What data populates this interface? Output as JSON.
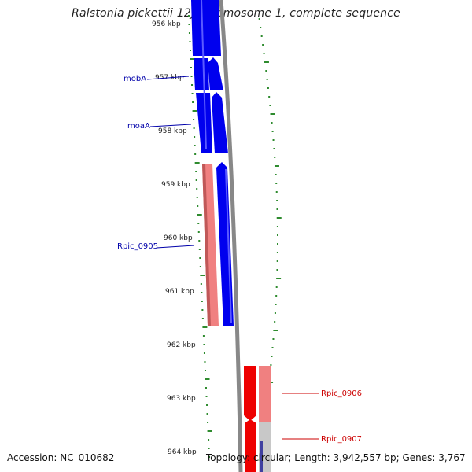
{
  "title": "Ralstonia pickettii 12J chromosome 1, complete sequence",
  "accession_text": "Accession: NC_010682",
  "topology_text": "Topology: circular; Length: 3,942,557 bp; Genes: 3,767",
  "scale_labels": [
    "956 kbp",
    "957 kbp",
    "958 kbp",
    "959 kbp",
    "960 kbp",
    "961 kbp",
    "962 kbp",
    "963 kbp",
    "964 kbp"
  ],
  "gene_labels": {
    "mobA": "mobA",
    "moaA": "moaA",
    "rpic_0905": "Rpic_0905",
    "rpic_0906": "Rpic_0906",
    "rpic_0907": "Rpic_0907"
  },
  "colors": {
    "forward_gene": "#0000ee",
    "rna_gene": "#f08080",
    "reverse_gene": "#ee0000",
    "label_blue": "#0000aa",
    "label_red": "#cc0000",
    "backbone": "#888888",
    "tick_green": "#2e8b2e",
    "pseudo_gene": "#c8c8c8"
  }
}
